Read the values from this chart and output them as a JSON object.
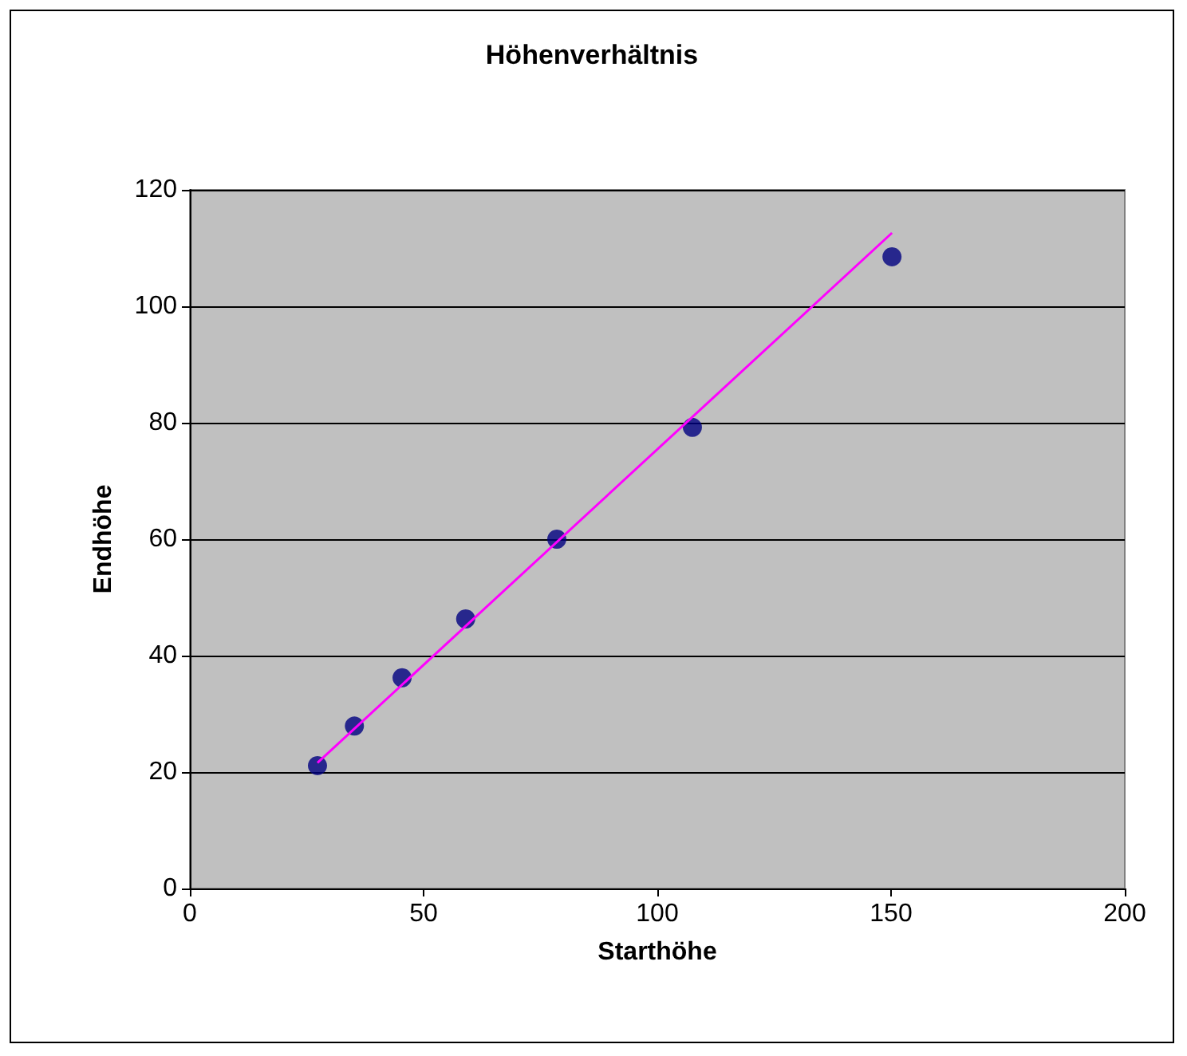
{
  "chart_data": {
    "type": "scatter",
    "title": "Höhenverhältnis",
    "xlabel": "Starthöhe",
    "ylabel": "Endhöhe",
    "xlim": [
      0,
      200
    ],
    "xticks": [
      0,
      50,
      100,
      150,
      200
    ],
    "ylim": [
      0,
      120
    ],
    "yticks": [
      0,
      20,
      40,
      60,
      80,
      100,
      120
    ],
    "grid": "y",
    "marker": "circle",
    "series": [
      {
        "color": "#000080",
        "x": [
          27.3,
          35.2,
          45.4,
          59,
          78.5,
          107.5,
          150.2
        ],
        "values": [
          21.1,
          27.9,
          36.2,
          46.3,
          60,
          79.2,
          108.5
        ]
      },
      {
        "type": "line",
        "color": "#ff00ff",
        "x": [
          27.3,
          150.2
        ],
        "values": [
          21.6,
          112.6
        ],
        "marker": "none"
      }
    ]
  }
}
